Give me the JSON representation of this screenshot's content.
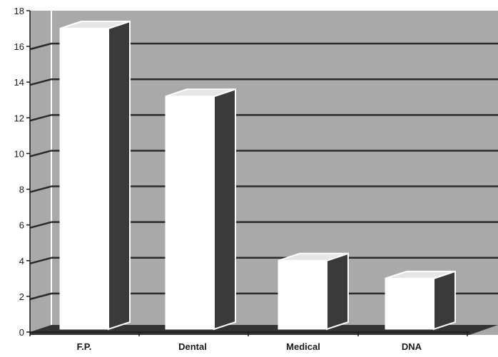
{
  "chart_data": {
    "type": "bar",
    "categories": [
      "F.P.",
      "Dental",
      "Medical",
      "DNA"
    ],
    "values": [
      17,
      13.2,
      4,
      3
    ],
    "ylim": [
      0,
      18
    ],
    "yticks": [
      0,
      2,
      4,
      6,
      8,
      10,
      12,
      14,
      16,
      18
    ],
    "grid": true,
    "style": "3d",
    "colors": {
      "background": "#a9a9a9",
      "bar_front": "#ffffff",
      "bar_side": "#3a3a3a",
      "gridline": "#2a2a2a",
      "floor": "#333333"
    }
  }
}
